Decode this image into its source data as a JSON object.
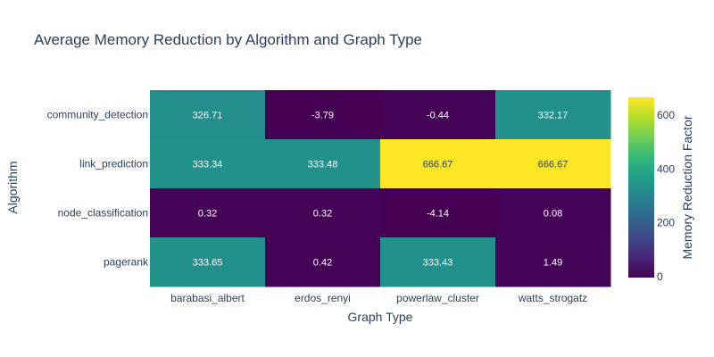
{
  "chart_data": {
    "type": "heatmap",
    "title": "Average Memory Reduction by Algorithm and Graph Type",
    "xlabel": "Graph Type",
    "ylabel": "Algorithm",
    "x_categories": [
      "barabasi_albert",
      "erdos_renyi",
      "powerlaw_cluster",
      "watts_strogatz"
    ],
    "y_categories": [
      "community_detection",
      "link_prediction",
      "node_classification",
      "pagerank"
    ],
    "values": [
      [
        326.71,
        -3.79,
        -0.44,
        332.17
      ],
      [
        333.34,
        333.48,
        666.67,
        666.67
      ],
      [
        0.32,
        0.32,
        -4.14,
        0.08
      ],
      [
        333.65,
        0.42,
        333.43,
        1.49
      ]
    ],
    "labels": [
      [
        "326.71",
        "-3.79",
        "-0.44",
        "332.17"
      ],
      [
        "333.34",
        "333.48",
        "666.67",
        "666.67"
      ],
      [
        "0.32",
        "0.32",
        "-4.14",
        "0.08"
      ],
      [
        "333.65",
        "0.42",
        "333.43",
        "1.49"
      ]
    ],
    "colorscale": "Viridis",
    "colorbar": {
      "title": "Memory Reduction Factor",
      "tickvals": [
        0,
        200,
        400,
        600
      ],
      "ticklabels": [
        "0",
        "200",
        "400",
        "600"
      ]
    }
  }
}
